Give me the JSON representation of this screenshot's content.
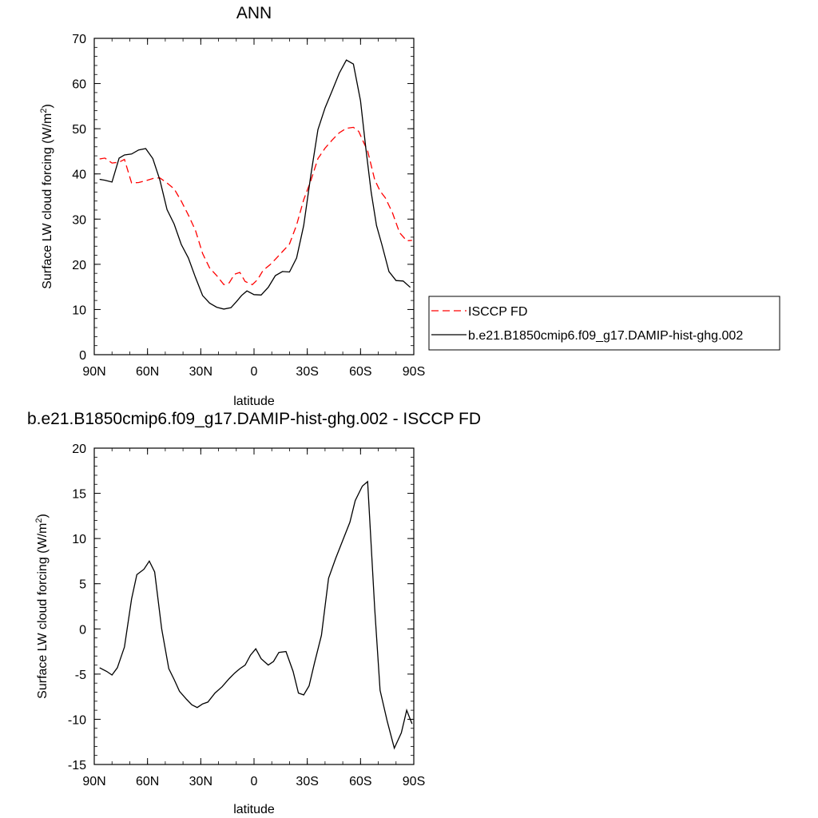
{
  "chart_data": [
    {
      "type": "line",
      "title": "ANN",
      "xlabel": "latitude",
      "ylabel": "Surface LW cloud forcing (W/m",
      "ylabel_sup": "2",
      "ylabel_end": ")",
      "xlim": [
        90,
        -90
      ],
      "ylim": [
        0,
        70
      ],
      "x_ticks": [
        90,
        60,
        30,
        0,
        -30,
        -60,
        -90
      ],
      "x_tick_labels": [
        "90N",
        "60N",
        "30N",
        "0",
        "30S",
        "60S",
        "90S"
      ],
      "y_ticks": [
        0,
        10,
        20,
        30,
        40,
        50,
        60,
        70
      ],
      "y_tick_labels": [
        "0",
        "10",
        "20",
        "30",
        "40",
        "50",
        "60",
        "70"
      ],
      "grid": false,
      "legend_position": "right",
      "series": [
        {
          "name": "ISCCP FD",
          "color": "#ff0000",
          "dash": "dashed",
          "x": [
            87,
            84,
            80,
            76,
            73,
            69,
            65,
            61,
            56,
            53,
            49,
            45,
            41,
            37,
            33,
            29,
            25,
            21,
            17,
            14,
            11,
            8,
            5,
            1,
            -2,
            -5,
            -9,
            -12,
            -16,
            -20,
            -24,
            -28,
            -32,
            -36,
            -40,
            -44,
            -48,
            -52,
            -56,
            -59,
            -61,
            -64,
            -68,
            -71,
            -74,
            -78,
            -82,
            -86,
            -89
          ],
          "y": [
            43.3,
            43.5,
            42.4,
            42.6,
            43.2,
            38,
            38.1,
            38.5,
            39.1,
            39.1,
            38,
            36.7,
            34,
            30.9,
            27.5,
            22.4,
            19.2,
            17.5,
            15.5,
            15.9,
            17.8,
            18.2,
            16.2,
            15.5,
            16.6,
            18.6,
            19.9,
            21.1,
            22.8,
            24.5,
            28.7,
            34.3,
            38.5,
            43.4,
            45.7,
            47.5,
            49.1,
            50.1,
            50.3,
            49.4,
            47.6,
            45.1,
            38.7,
            36.2,
            34.7,
            31.4,
            27,
            25.2,
            25.3
          ]
        },
        {
          "name": "b.e21.B1850cmip6.f09_g17.DAMIP-hist-ghg.002",
          "color": "#000000",
          "dash": "solid",
          "x": [
            87,
            84,
            80,
            76,
            73,
            69,
            65,
            61,
            57,
            53,
            49,
            45,
            41,
            37,
            33,
            29,
            25,
            21,
            17,
            13,
            10,
            7,
            4,
            0,
            -4,
            -8,
            -12,
            -16,
            -20,
            -24,
            -28,
            -32,
            -36,
            -40,
            -44,
            -48,
            -52,
            -56,
            -60,
            -63,
            -66,
            -69,
            -72,
            -76,
            -80,
            -84,
            -88
          ],
          "y": [
            38.8,
            38.6,
            38.2,
            43.5,
            44.2,
            44.4,
            45.3,
            45.6,
            43.4,
            38.6,
            32.1,
            28.9,
            24.4,
            21.4,
            17.1,
            13.1,
            11.4,
            10.5,
            10.1,
            10.4,
            11.7,
            13.1,
            14.1,
            13.3,
            13.2,
            14.9,
            17.5,
            18.4,
            18.3,
            21.4,
            28.6,
            39.7,
            49.8,
            54.6,
            58.4,
            62.3,
            65.2,
            64.3,
            56.2,
            45.6,
            35.9,
            28.6,
            24.4,
            18.4,
            16.4,
            16.3,
            14.9
          ]
        }
      ]
    },
    {
      "type": "line",
      "title": "b.e21.B1850cmip6.f09_g17.DAMIP-hist-ghg.002 - ISCCP FD",
      "xlabel": "latitude",
      "ylabel": "Surface LW cloud forcing (W/m",
      "ylabel_sup": "2",
      "ylabel_end": ")",
      "xlim": [
        90,
        -90
      ],
      "ylim": [
        -15,
        20
      ],
      "x_ticks": [
        90,
        60,
        30,
        0,
        -30,
        -60,
        -90
      ],
      "x_tick_labels": [
        "90N",
        "60N",
        "30N",
        "0",
        "30S",
        "60S",
        "90S"
      ],
      "y_ticks": [
        -15,
        -10,
        -5,
        0,
        5,
        10,
        15,
        20
      ],
      "y_tick_labels": [
        "-15",
        "-10",
        "-5",
        "0",
        "5",
        "10",
        "15",
        "20"
      ],
      "grid": false,
      "series": [
        {
          "color": "#000000",
          "dash": "solid",
          "x": [
            87,
            83,
            80,
            77,
            73,
            69,
            66,
            62,
            59,
            56,
            52,
            48,
            45,
            42,
            38,
            35,
            32,
            29,
            26,
            22,
            18,
            14,
            11,
            8,
            5,
            2,
            -1,
            -4,
            -8,
            -11,
            -14,
            -18,
            -22,
            -25,
            -28,
            -31,
            -34,
            -38,
            -42,
            -46,
            -50,
            -54,
            -57,
            -61,
            -64,
            -68,
            -71,
            -75,
            -79,
            -83,
            -86,
            -89
          ],
          "y": [
            -4.3,
            -4.7,
            -5.1,
            -4.3,
            -2,
            3.3,
            6,
            6.6,
            7.5,
            6.3,
            0,
            -4.4,
            -5.6,
            -6.9,
            -7.8,
            -8.4,
            -8.7,
            -8.3,
            -8.1,
            -7.1,
            -6.4,
            -5.5,
            -4.9,
            -4.4,
            -4,
            -2.9,
            -2.2,
            -3.3,
            -4,
            -3.6,
            -2.6,
            -2.5,
            -4.7,
            -7.1,
            -7.3,
            -6.3,
            -3.8,
            -0.7,
            5.6,
            7.8,
            9.8,
            11.8,
            14.2,
            15.8,
            16.3,
            2.2,
            -6.8,
            -10.2,
            -13.2,
            -11.5,
            -9,
            -10.5
          ]
        }
      ]
    }
  ]
}
